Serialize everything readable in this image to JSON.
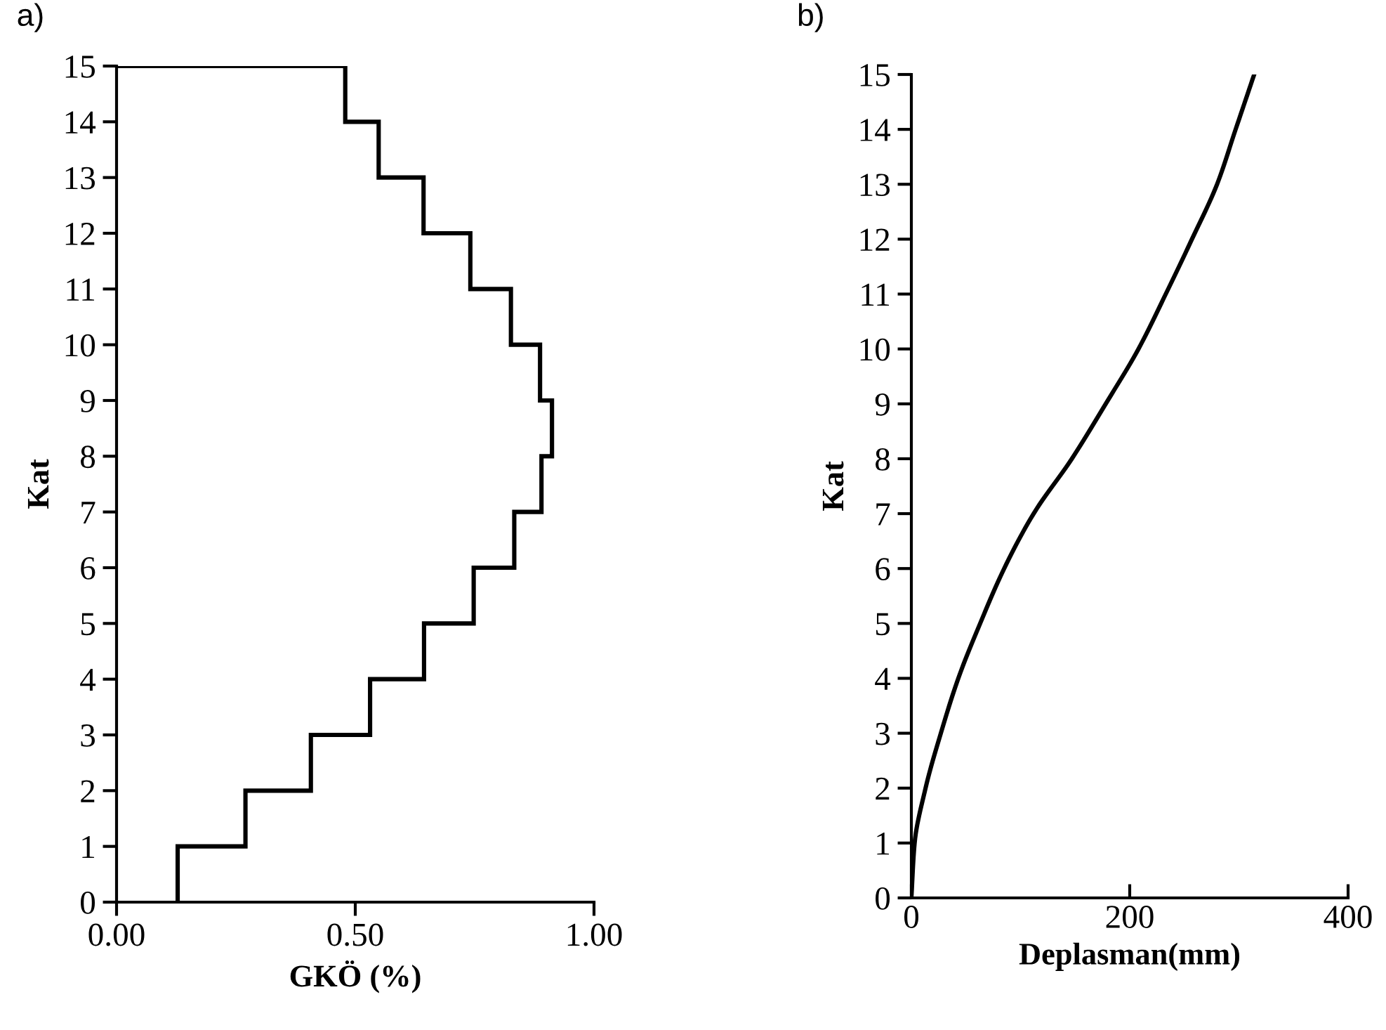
{
  "chart_data": [
    {
      "type": "step",
      "orientation": "horizontal",
      "xlabel": "GKÖ (%)",
      "ylabel": "Kat",
      "annotations": [
        "a)"
      ],
      "x": [
        0,
        1,
        2,
        3,
        4,
        5,
        6,
        7,
        8,
        9,
        10,
        11,
        12,
        13,
        14,
        15
      ],
      "values": [
        0.128,
        0.27,
        0.407,
        0.531,
        0.644,
        0.748,
        0.833,
        0.89,
        0.912,
        0.887,
        0.826,
        0.741,
        0.643,
        0.549,
        0.479,
        0
      ],
      "color": "#000000",
      "xlim": [
        0,
        1
      ],
      "xticks": [
        {
          "value": 0,
          "label": "0.00"
        },
        {
          "value": 0.5,
          "label": "0.50"
        },
        {
          "value": 1,
          "label": "1.00"
        }
      ],
      "ylim": [
        0,
        15
      ],
      "yticks": [
        0,
        1,
        2,
        3,
        4,
        5,
        6,
        7,
        8,
        9,
        10,
        11,
        12,
        13,
        14,
        15
      ],
      "grid": false
    },
    {
      "type": "line",
      "orientation": "horizontal",
      "xlabel": "Deplasman(mm)",
      "ylabel": "Kat",
      "annotations": [
        "b)"
      ],
      "x": [
        0,
        1,
        2,
        3,
        4,
        5,
        6,
        7,
        8,
        9,
        10,
        11,
        12,
        13,
        14,
        15
      ],
      "values": [
        0,
        3,
        13,
        27,
        43,
        63,
        85,
        112,
        147,
        178,
        208,
        233,
        257,
        280,
        297,
        314
      ],
      "color": "#000000",
      "marker": "none",
      "line_style": "solid",
      "xlim": [
        0,
        400
      ],
      "xticks": [
        0,
        200,
        400
      ],
      "ylim": [
        0,
        15
      ],
      "yticks": [
        0,
        1,
        2,
        3,
        4,
        5,
        6,
        7,
        8,
        9,
        10,
        11,
        12,
        13,
        14,
        15
      ],
      "grid": false
    }
  ]
}
